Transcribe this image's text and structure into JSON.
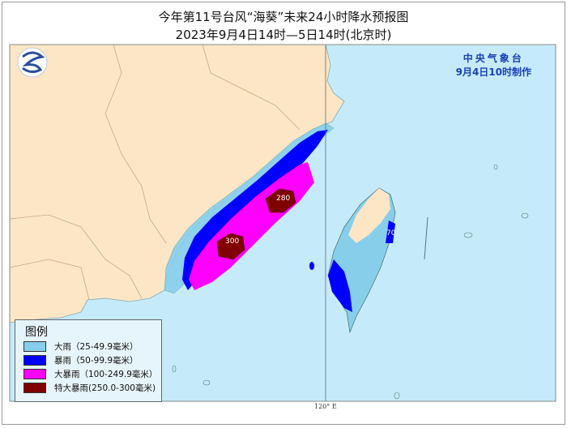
{
  "title": "今年第11号台风“海葵”未来24小时降水预报图",
  "subtitle": "2023年9月4日14时—5日14时(北京时)",
  "agency": {
    "name": "中央气象台",
    "issued": "9月4日10时制作"
  },
  "legend": {
    "title": "图例",
    "items": [
      {
        "label": "大雨（25-49.9毫米）",
        "color": "#87ceeb"
      },
      {
        "label": "暴雨（50-99.9毫米）",
        "color": "#0000ff"
      },
      {
        "label": "大暴雨（100-249.9毫米）",
        "color": "#ff00ff"
      },
      {
        "label": "特大暴雨(250.0-300毫米)",
        "color": "#800000"
      }
    ]
  },
  "map_labels": {
    "max1": "280",
    "max2": "300",
    "taiwan": "70",
    "longitude": "120° E"
  },
  "colors": {
    "land": "#fde6c6",
    "sea": "#c5ebfb",
    "border": "#c8a880"
  }
}
